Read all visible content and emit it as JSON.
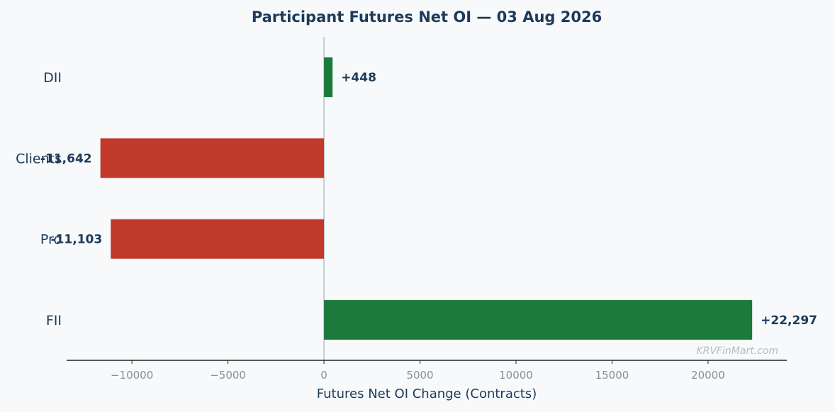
{
  "chart_data": {
    "type": "bar",
    "orientation": "horizontal",
    "title": "Participant Futures Net OI — 03 Aug 2026",
    "xlabel": "Futures Net OI Change (Contracts)",
    "ylabel": "",
    "categories": [
      "DII",
      "Clients",
      "Pro",
      "FII"
    ],
    "values": [
      448,
      -11642,
      -11103,
      22297
    ],
    "value_labels": [
      "+448",
      "-11,642",
      "-11,103",
      "+22,297"
    ],
    "xlim": [
      -13400,
      24100
    ],
    "xticks": [
      -10000,
      -5000,
      0,
      5000,
      10000,
      15000,
      20000
    ],
    "xtick_labels": [
      "−10000",
      "−5000",
      "0",
      "5000",
      "10000",
      "15000",
      "20000"
    ],
    "grid": false,
    "colors": {
      "positive": "#1c7b3c",
      "negative": "#c0392b",
      "zero_line": "#b7c0cc",
      "axis": "#222222",
      "text": "#1d3a5a"
    }
  },
  "watermark": "KRVFinMart.com"
}
